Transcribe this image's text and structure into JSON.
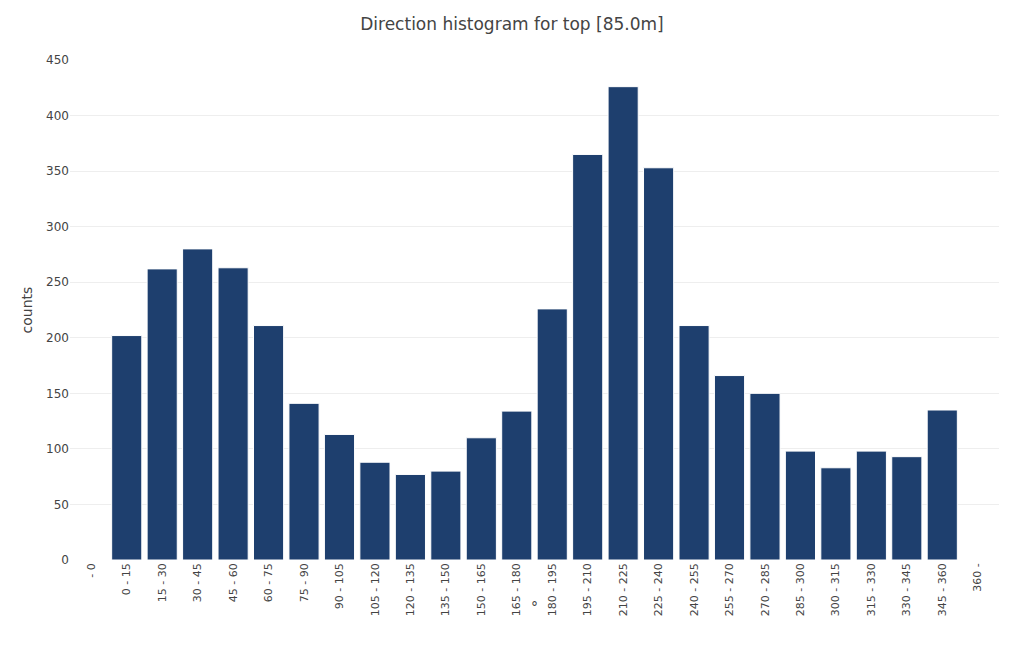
{
  "chart_data": {
    "type": "bar",
    "title": "Direction histogram for top [85.0m]",
    "xlabel": "°",
    "ylabel": "counts",
    "categories": [
      "- 0",
      "0 - 15",
      "15 - 30",
      "30 - 45",
      "45 - 60",
      "60 - 75",
      "75 - 90",
      "90 - 105",
      "105 - 120",
      "120 - 135",
      "135 - 150",
      "150 - 165",
      "165 - 180",
      "180 - 195",
      "195 - 210",
      "210 - 225",
      "225 - 240",
      "240 - 255",
      "255 - 270",
      "270 - 285",
      "285 - 300",
      "300 - 315",
      "315 - 330",
      "330 - 345",
      "345 - 360",
      "360 -"
    ],
    "values": [
      0,
      202,
      262,
      280,
      263,
      211,
      141,
      113,
      88,
      77,
      80,
      110,
      134,
      226,
      365,
      426,
      353,
      211,
      166,
      150,
      98,
      83,
      98,
      93,
      135,
      0
    ],
    "color": "#1e3f6e",
    "ylim": [
      0,
      450
    ],
    "yticks": [
      0,
      50,
      100,
      150,
      200,
      250,
      300,
      350,
      400,
      450
    ],
    "grid": true
  }
}
